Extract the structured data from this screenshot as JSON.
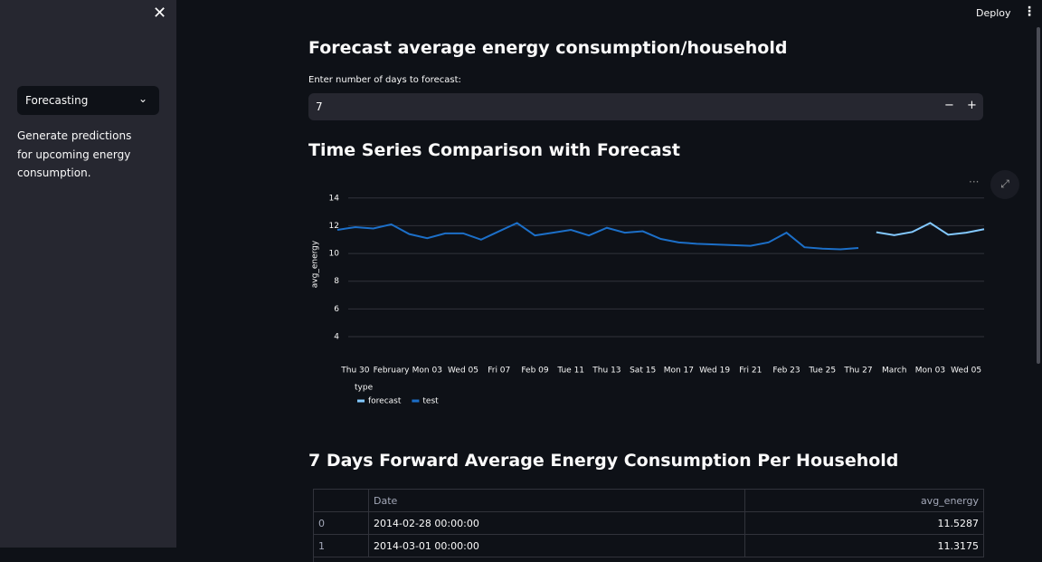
{
  "header": {
    "deploy": "Deploy"
  },
  "sidebar": {
    "select": "Forecasting",
    "description": "Generate predictions for upcoming energy consumption."
  },
  "main": {
    "title": "Forecast average energy consumption/household",
    "input_label": "Enter number of days to forecast:",
    "input_value": 7,
    "chart_heading": "Time Series Comparison with Forecast"
  },
  "chart_data": {
    "type": "line",
    "ylabel": "avg_energy",
    "legend_title": "type",
    "grid": true,
    "xlim": [
      "2014-01-29",
      "2014-03-06"
    ],
    "ylim": [
      2.5,
      14.9
    ],
    "yticks": [
      4,
      6,
      8,
      10,
      12,
      14
    ],
    "xticks": [
      {
        "value": "2014-01-30",
        "label": "Thu 30"
      },
      {
        "value": "2014-02-01",
        "label": "February"
      },
      {
        "value": "2014-02-03",
        "label": "Mon 03"
      },
      {
        "value": "2014-02-05",
        "label": "Wed 05"
      },
      {
        "value": "2014-02-07",
        "label": "Fri 07"
      },
      {
        "value": "2014-02-09",
        "label": "Feb 09"
      },
      {
        "value": "2014-02-11",
        "label": "Tue 11"
      },
      {
        "value": "2014-02-13",
        "label": "Thu 13"
      },
      {
        "value": "2014-02-15",
        "label": "Sat 15"
      },
      {
        "value": "2014-02-17",
        "label": "Mon 17"
      },
      {
        "value": "2014-02-19",
        "label": "Wed 19"
      },
      {
        "value": "2014-02-21",
        "label": "Fri 21"
      },
      {
        "value": "2014-02-23",
        "label": "Feb 23"
      },
      {
        "value": "2014-02-25",
        "label": "Tue 25"
      },
      {
        "value": "2014-02-27",
        "label": "Thu 27"
      },
      {
        "value": "2014-03-01",
        "label": "March"
      },
      {
        "value": "2014-03-03",
        "label": "Mon 03"
      },
      {
        "value": "2014-03-05",
        "label": "Wed 05"
      }
    ],
    "series": [
      {
        "name": "forecast",
        "color": "#83c9ff",
        "x": [
          "2014-02-28",
          "2014-03-01",
          "2014-03-02",
          "2014-03-03",
          "2014-03-04",
          "2014-03-05",
          "2014-03-06"
        ],
        "values": [
          11.53,
          11.32,
          11.55,
          12.2,
          11.35,
          11.5,
          11.75
        ]
      },
      {
        "name": "test",
        "color": "#1c6fc8",
        "x": [
          "2014-01-29",
          "2014-01-30",
          "2014-01-31",
          "2014-02-01",
          "2014-02-02",
          "2014-02-03",
          "2014-02-04",
          "2014-02-05",
          "2014-02-06",
          "2014-02-07",
          "2014-02-08",
          "2014-02-09",
          "2014-02-10",
          "2014-02-11",
          "2014-02-12",
          "2014-02-13",
          "2014-02-14",
          "2014-02-15",
          "2014-02-16",
          "2014-02-17",
          "2014-02-18",
          "2014-02-19",
          "2014-02-20",
          "2014-02-21",
          "2014-02-22",
          "2014-02-23",
          "2014-02-24",
          "2014-02-25",
          "2014-02-26",
          "2014-02-27"
        ],
        "values": [
          11.7,
          11.9,
          11.8,
          12.1,
          11.4,
          11.1,
          11.45,
          11.45,
          11.0,
          11.6,
          12.2,
          11.3,
          11.5,
          11.7,
          11.3,
          11.85,
          11.5,
          11.6,
          11.05,
          10.8,
          10.7,
          10.65,
          10.6,
          10.55,
          10.8,
          11.5,
          10.45,
          10.35,
          10.3,
          10.4
        ]
      }
    ]
  },
  "table": {
    "heading": "7 Days Forward Average Energy Consumption Per Household",
    "columns": [
      "Date",
      "avg_energy"
    ],
    "rows": [
      [
        0,
        "2014-02-28 00:00:00",
        11.5287
      ],
      [
        1,
        "2014-03-01 00:00:00",
        11.3175
      ]
    ]
  }
}
